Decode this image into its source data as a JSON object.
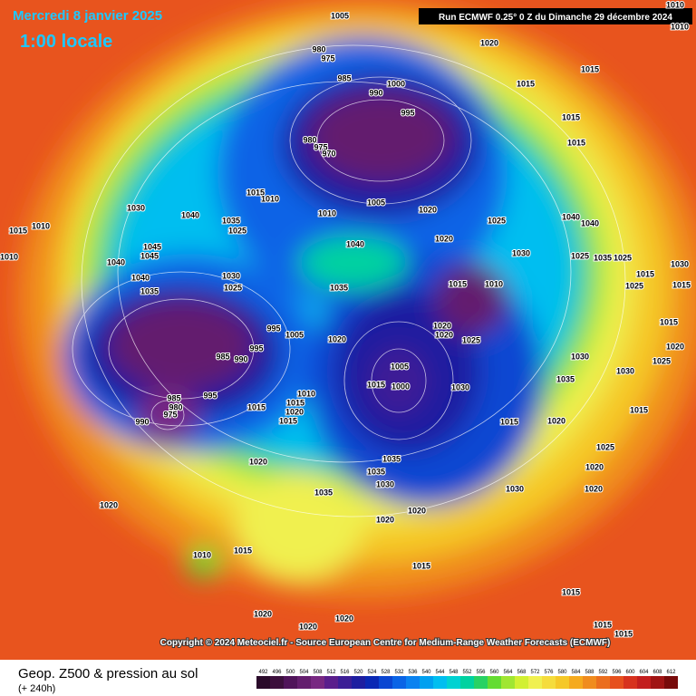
{
  "header": {
    "title": "Mercredi 8 janvier 2025",
    "subtitle": "1:00 locale",
    "run": "Run ECMWF 0.25° 0 Z du Dimanche 29 décembre 2024"
  },
  "copyright": "Copyright © 2024 Meteociel.fr - Source European Centre for Medium-Range Weather Forecasts (ECMWF)",
  "footer": {
    "title": "Geop. Z500 & pression au sol",
    "lead": "(+ 240h)"
  },
  "pressure_labels": [
    1005,
    1020,
    980,
    975,
    985,
    1000,
    990,
    995,
    1015,
    1015,
    1015,
    1015,
    980,
    975,
    970,
    1010,
    1015,
    1010,
    1030,
    1040,
    1035,
    1025,
    1015,
    1010,
    1045,
    1045,
    1040,
    1040,
    1035,
    1030,
    1025,
    1010,
    1040,
    1005,
    1020,
    1020,
    1025,
    1040,
    1040,
    1035,
    1015,
    1010,
    995,
    1005,
    1020,
    995,
    985,
    990,
    995,
    1015,
    985,
    980,
    975,
    990,
    1010,
    1015,
    1020,
    1015,
    1005,
    1015,
    1000,
    1030,
    1020,
    1020,
    1025,
    1015,
    1020,
    1020,
    1035,
    1035,
    1030,
    1035,
    1030,
    1020,
    1020,
    1020,
    1010,
    1015,
    1015,
    1015,
    1020,
    1020,
    1020,
    1020,
    1020,
    1025,
    1030,
    1035,
    1030,
    1025,
    1030,
    1015,
    1015,
    1015,
    1020,
    1025,
    1015,
    1025,
    1035,
    1025,
    1030,
    1015,
    1015,
    1010,
    1010
  ],
  "scale": {
    "values": [
      492,
      496,
      500,
      504,
      508,
      512,
      516,
      520,
      524,
      528,
      532,
      536,
      540,
      544,
      548,
      552,
      556,
      560,
      564,
      568,
      572,
      576,
      580,
      584,
      588,
      592,
      596,
      600,
      604,
      608,
      612
    ],
    "colors": [
      "#2a0a2a",
      "#3c0f3c",
      "#50145a",
      "#641e6e",
      "#782882",
      "#5a1e8c",
      "#3c1e96",
      "#1e1ea0",
      "#0a28b4",
      "#0a46d2",
      "#0a64e6",
      "#0a82f0",
      "#00a0f0",
      "#00bef0",
      "#00d2d2",
      "#00d2a0",
      "#28d264",
      "#64dc32",
      "#a0e632",
      "#d2f032",
      "#f0f050",
      "#f5dc3c",
      "#f5c828",
      "#f5aa1e",
      "#f08c1e",
      "#eb6e1e",
      "#e6501e",
      "#d7321e",
      "#c31e1e",
      "#a01414",
      "#780a0a"
    ]
  }
}
